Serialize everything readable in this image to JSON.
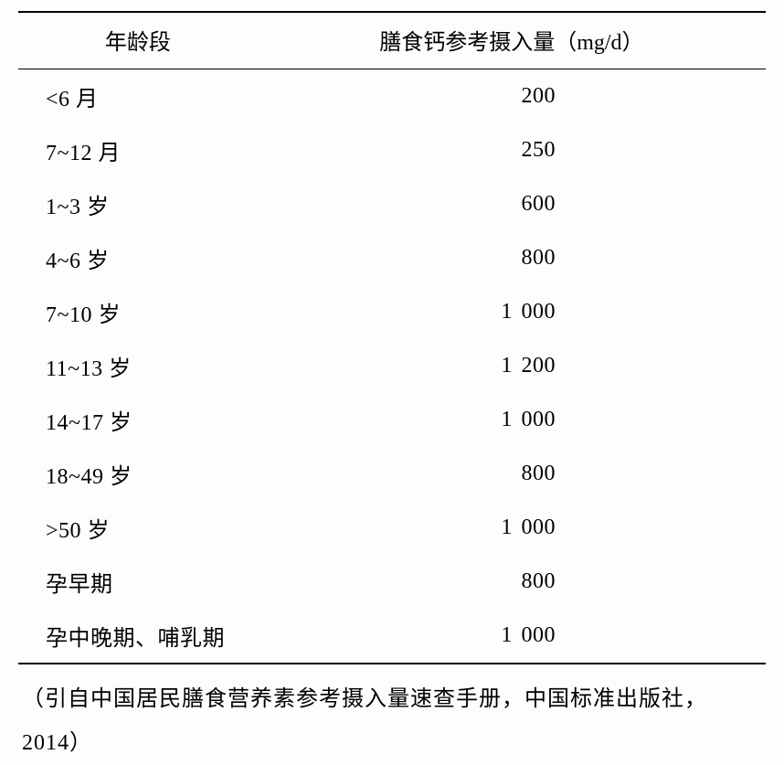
{
  "table": {
    "headers": {
      "age": "年龄段",
      "value_prefix": "膳食钙参考摄入量（",
      "value_unit": "mg/d",
      "value_suffix": "）"
    },
    "rows": [
      {
        "age": "<6 月",
        "value": "200"
      },
      {
        "age": "7~12 月",
        "value": "250"
      },
      {
        "age": "1~3 岁",
        "value": "600"
      },
      {
        "age": "4~6 岁",
        "value": "800"
      },
      {
        "age": "7~10 岁",
        "value": "1 000"
      },
      {
        "age": "11~13 岁",
        "value": "1 200"
      },
      {
        "age": "14~17 岁",
        "value": "1 000"
      },
      {
        "age": "18~49 岁",
        "value": "800"
      },
      {
        "age": ">50 岁",
        "value": "1 000"
      },
      {
        "age": "孕早期",
        "value": "800"
      },
      {
        "age": "孕中晚期、哺乳期",
        "value": "1 000"
      }
    ]
  },
  "source": "（引自中国居民膳食营养素参考摄入量速查手册，中国标准出版社，2014）",
  "styling": {
    "background_color": "#fdfdfe",
    "text_color": "#000000",
    "border_color": "#000000",
    "font_size_header": 24,
    "font_size_body": 24,
    "font_size_source": 24,
    "top_border_width": 2.5,
    "header_border_width": 1.5,
    "bottom_border_width": 2.5
  }
}
